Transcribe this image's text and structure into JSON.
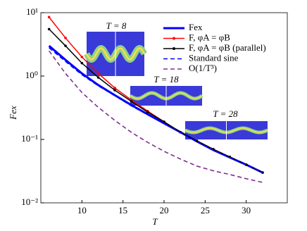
{
  "chart_data": {
    "type": "line",
    "log_y": true,
    "xlabel": "T",
    "ylabel": "Fex",
    "x": [
      6,
      8,
      10,
      12,
      14,
      16,
      18,
      20,
      22,
      24,
      26,
      28,
      30,
      32
    ],
    "xlim": [
      5,
      35
    ],
    "xticks": [
      10,
      15,
      20,
      25,
      30
    ],
    "ylim": [
      0.01,
      10
    ],
    "yticks": [
      {
        "value": 0.01,
        "label": "10⁻²"
      },
      {
        "value": 0.1,
        "label": "10⁻¹"
      },
      {
        "value": 1,
        "label": "10⁰"
      },
      {
        "value": 10,
        "label": "10¹"
      }
    ],
    "legend": "upper right",
    "series": [
      {
        "name": "Fex",
        "color": "#0000ff",
        "style": "solid-thick",
        "values": [
          3.0,
          1.8,
          1.1,
          0.72,
          0.5,
          0.35,
          0.25,
          0.18,
          0.13,
          0.093,
          0.068,
          0.052,
          0.04,
          0.03
        ]
      },
      {
        "name": "F, φA = φB",
        "color": "#ff0000",
        "style": "solid-dots",
        "values": [
          8.5,
          4.0,
          2.0,
          1.1,
          0.65,
          0.42,
          0.28,
          0.19,
          0.13,
          0.095,
          0.07,
          0.053,
          0.04,
          0.03
        ]
      },
      {
        "name": "F, φA = φB (parallel)",
        "color": "#000000",
        "style": "solid-dots",
        "values": [
          5.5,
          3.0,
          1.6,
          0.95,
          0.6,
          0.4,
          0.27,
          0.19,
          0.13,
          0.095,
          0.07,
          0.053,
          0.04,
          0.03
        ]
      },
      {
        "name": "Standard sine",
        "color": "#0000ff",
        "style": "dashed",
        "values": [
          2.8,
          1.7,
          1.05,
          0.7,
          0.49,
          0.34,
          0.245,
          0.178,
          0.128,
          0.092,
          0.068,
          0.052,
          0.04,
          0.03
        ]
      },
      {
        "name": "O(1/T³)",
        "color": "#7e2f8e",
        "style": "dashed",
        "values": [
          2.5,
          1.1,
          0.55,
          0.32,
          0.2,
          0.13,
          0.09,
          0.065,
          0.049,
          0.038,
          0.032,
          0.028,
          0.024,
          0.021
        ]
      }
    ],
    "annotations": [
      "T = 8",
      "T = 18",
      "T = 28"
    ]
  }
}
